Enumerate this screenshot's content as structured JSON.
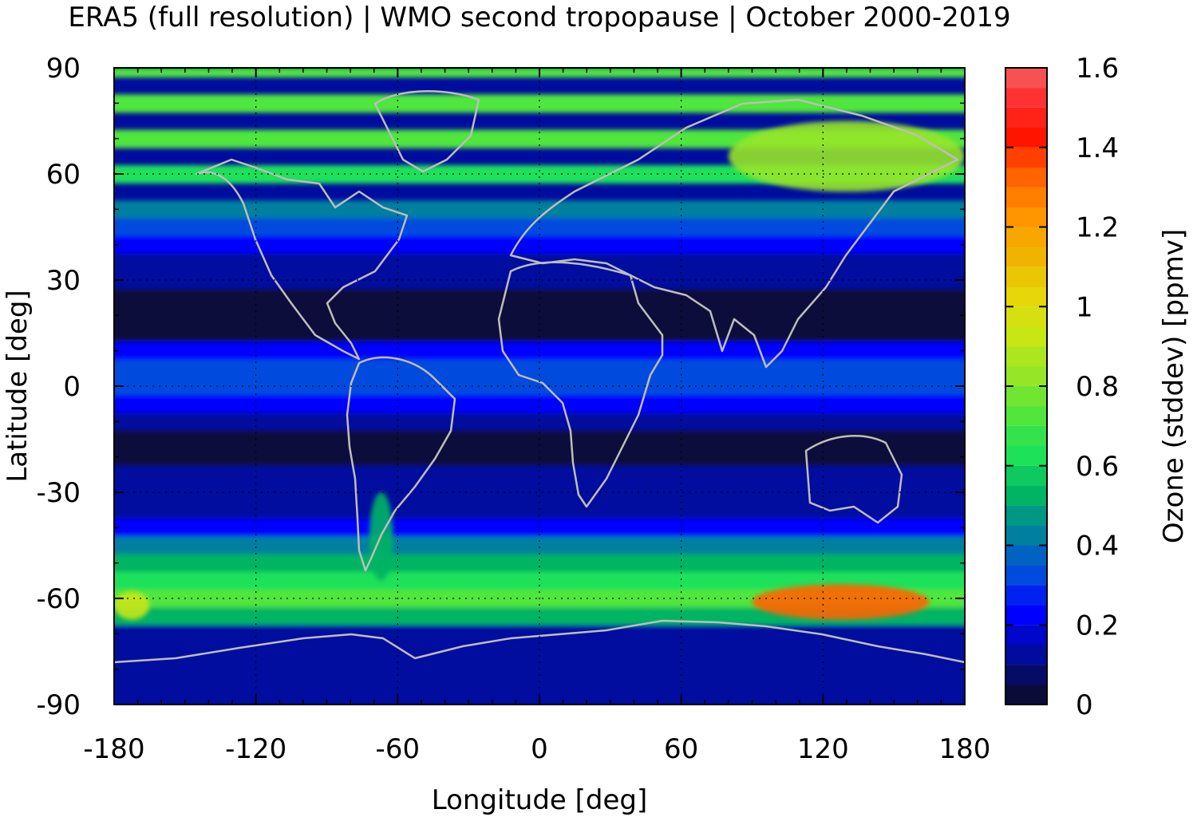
{
  "chart_data": {
    "type": "heatmap",
    "title": "ERA5 (full resolution) | WMO second tropopause | October 2000-2019",
    "xlabel": "Longitude [deg]",
    "ylabel": "Latitude [deg]",
    "xlim": [
      -180,
      180
    ],
    "ylim": [
      -90,
      90
    ],
    "x_ticks": [
      "-180",
      "-120",
      "-60",
      "0",
      "60",
      "120",
      "180"
    ],
    "y_ticks": [
      "90",
      "60",
      "30",
      "0",
      "-30",
      "-60",
      "-90"
    ],
    "grid": true,
    "colorbar": {
      "label": "Ozone (stddev) [ppmv]",
      "range": [
        0,
        1.6
      ],
      "ticks": [
        "1.6",
        "1.4",
        "1.2",
        "1",
        "0.8",
        "0.6",
        "0.4",
        "0.2",
        "0"
      ],
      "levels": [
        0,
        0.1,
        0.2,
        0.3,
        0.4,
        0.5,
        0.6,
        0.7,
        0.8,
        0.9,
        1.0,
        1.1,
        1.2,
        1.3,
        1.4,
        1.5,
        1.6
      ],
      "colors": [
        "#0b0b3a",
        "#000c9e",
        "#0000ff",
        "#004bde",
        "#00809e",
        "#00b464",
        "#1ee15a",
        "#50e63c",
        "#96e628",
        "#c8e614",
        "#e6d60a",
        "#f0b400",
        "#ff9600",
        "#ff6400",
        "#ff1400",
        "#ff3232",
        "#f07878",
        "#ffcccc"
      ]
    },
    "zonal_profile": {
      "latitude": [
        90,
        80,
        70,
        60,
        50,
        45,
        40,
        35,
        30,
        25,
        20,
        15,
        10,
        5,
        0,
        -5,
        -10,
        -15,
        -20,
        -25,
        -30,
        -35,
        -40,
        -45,
        -50,
        -55,
        -60,
        -65,
        -70,
        -75,
        -80,
        -85,
        -90
      ],
      "value": [
        0.7,
        0.78,
        0.75,
        0.65,
        0.45,
        0.3,
        0.2,
        0.15,
        0.1,
        0.06,
        0.05,
        0.07,
        0.2,
        0.3,
        0.32,
        0.22,
        0.1,
        0.06,
        0.08,
        0.14,
        0.15,
        0.18,
        0.25,
        0.4,
        0.55,
        0.62,
        0.7,
        0.5,
        0.18,
        0.15,
        0.14,
        0.13,
        0.12
      ]
    },
    "regional_features": [
      {
        "lon": [
          90,
          165
        ],
        "lat": [
          -66,
          -56
        ],
        "value": 1.3
      },
      {
        "lon": [
          -180,
          -165
        ],
        "lat": [
          -66,
          -58
        ],
        "value": 0.95
      },
      {
        "lon": [
          80,
          180
        ],
        "lat": [
          55,
          75
        ],
        "value": 0.85
      },
      {
        "lon": [
          -72,
          -62
        ],
        "lat": [
          -55,
          -30
        ],
        "value": 0.55
      }
    ]
  }
}
